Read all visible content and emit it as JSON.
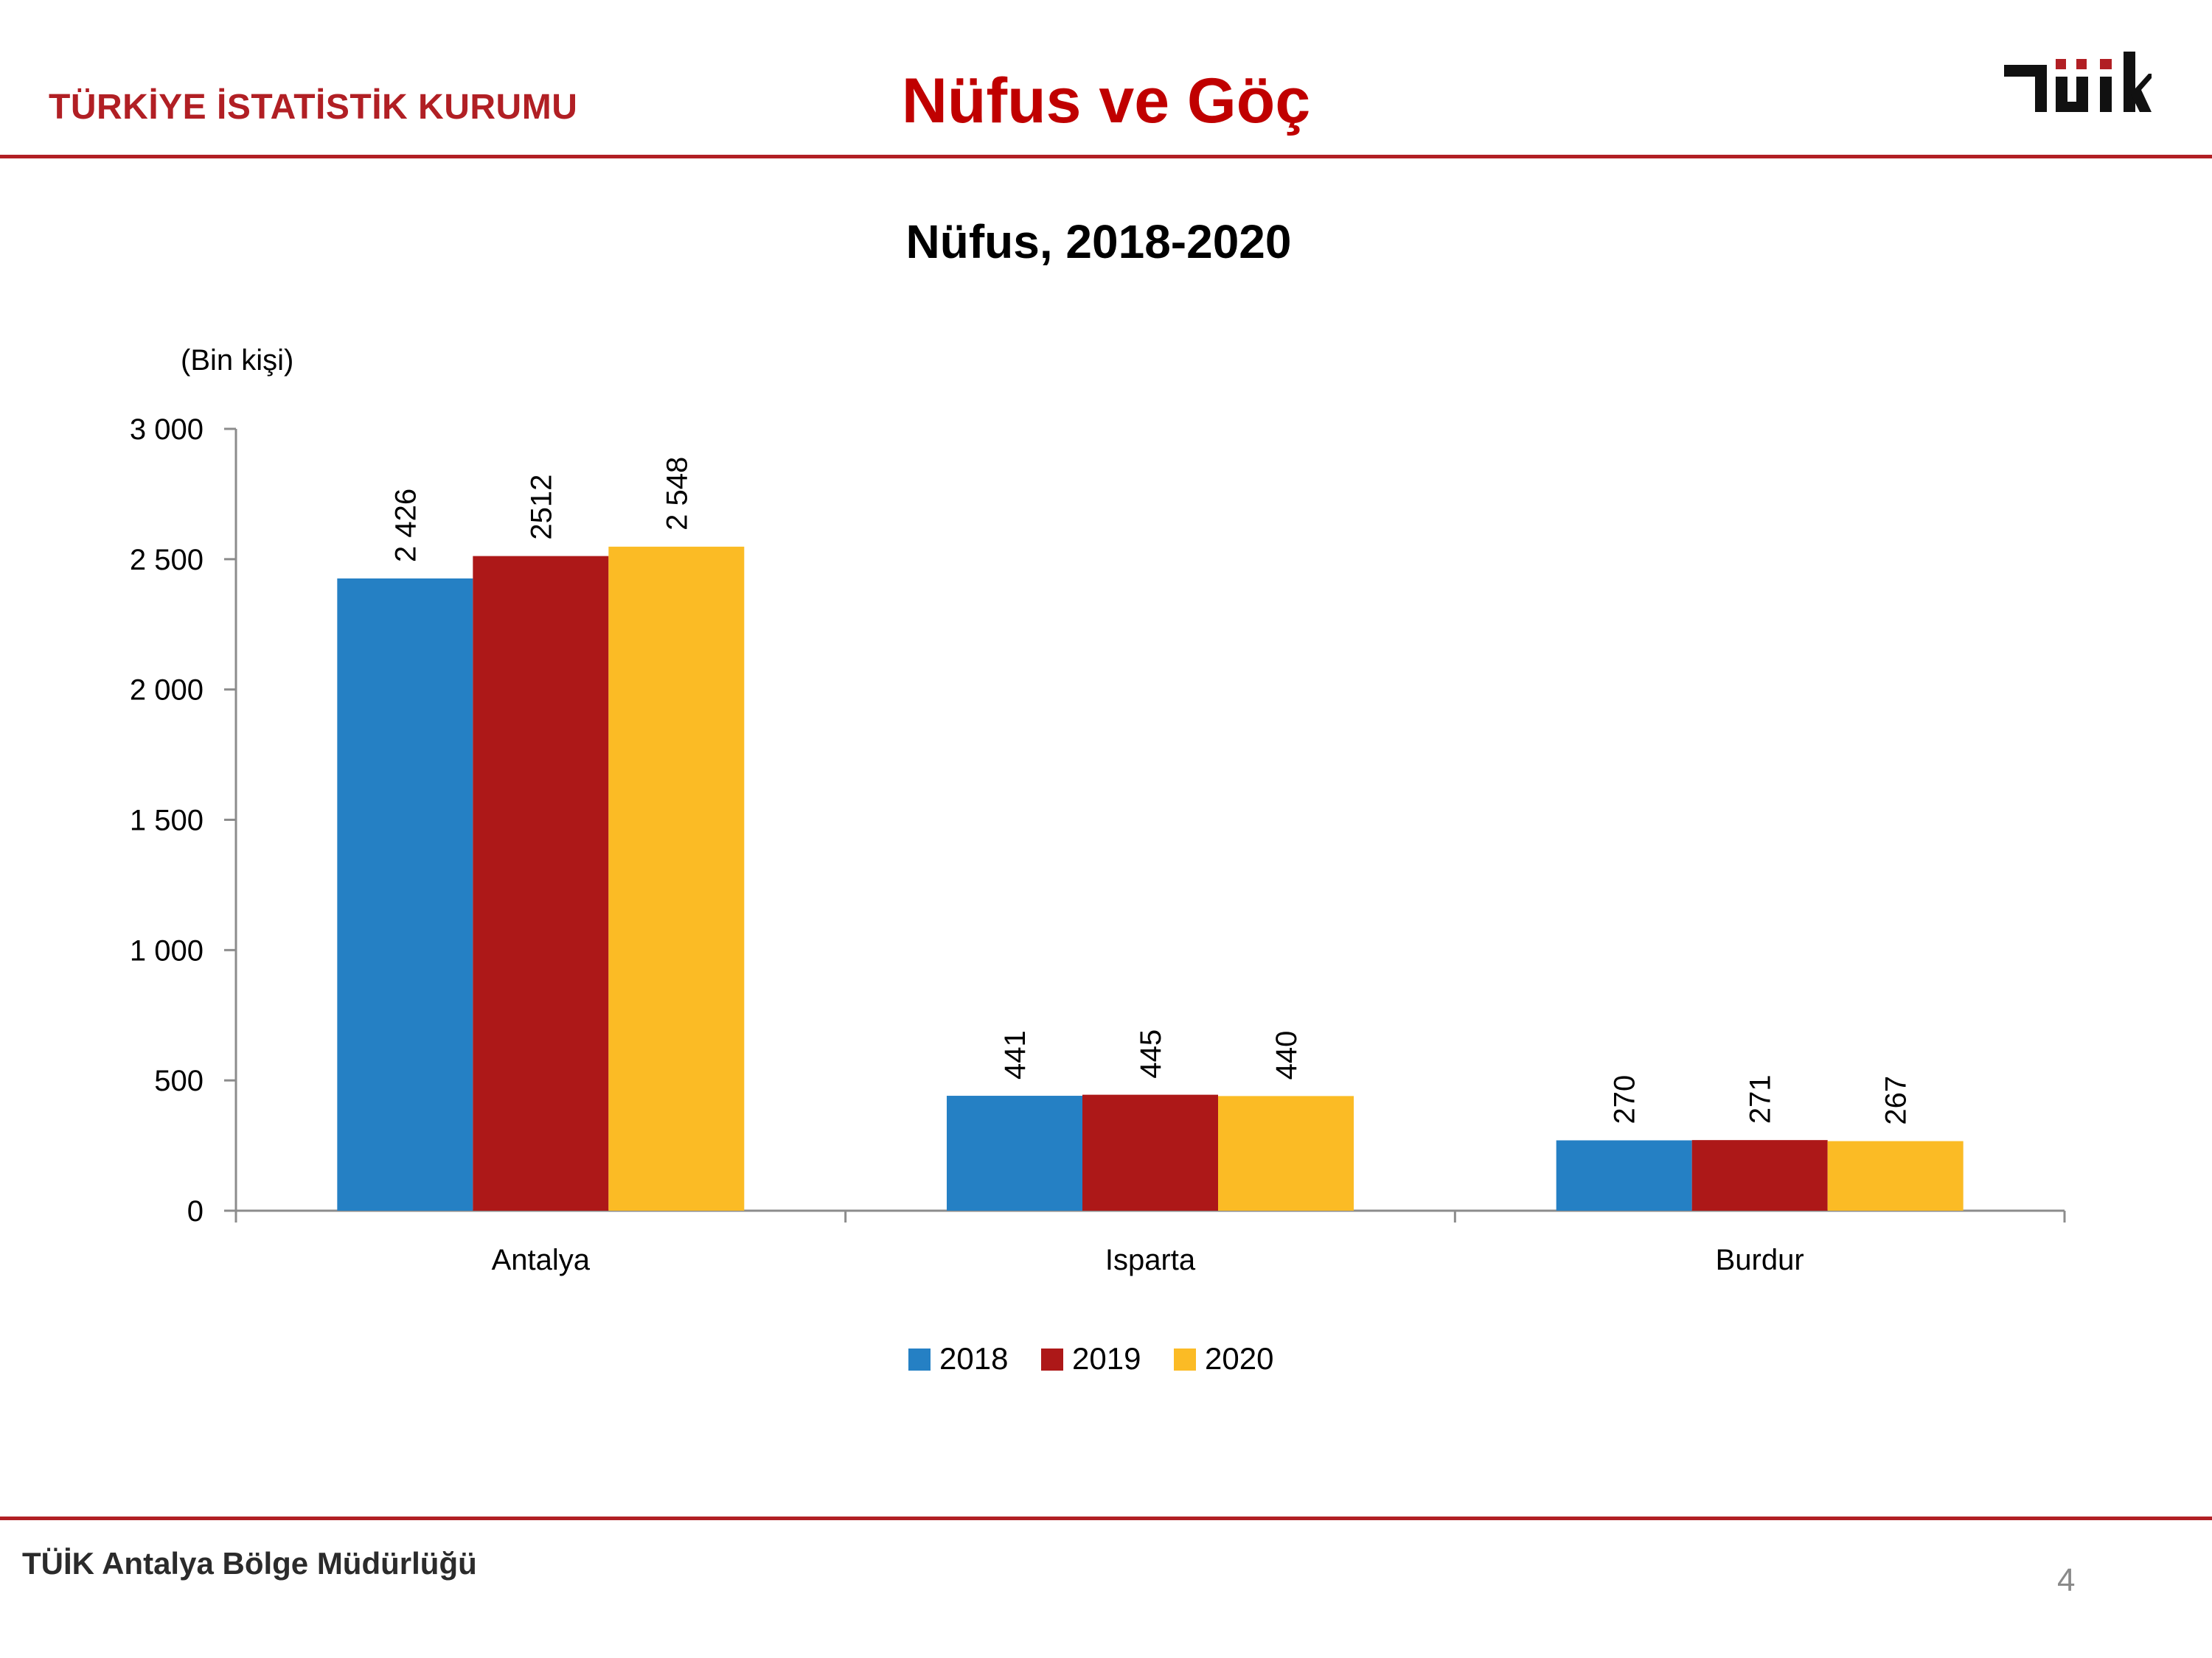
{
  "header": {
    "org_name": "TÜRKİYE İSTATİSTİK KURUMU",
    "slide_title": "Nüfus ve Göç",
    "logo_text": "TÜİK"
  },
  "footer": {
    "office": "TÜİK Antalya Bölge Müdürlüğü",
    "page_number": "4"
  },
  "colors": {
    "accent": "#b11f24",
    "title": "#c00000"
  },
  "chart_data": {
    "type": "bar",
    "title": "Nüfus, 2018-2020",
    "unit_label": "(Bin kişi)",
    "categories": [
      "Antalya",
      "Isparta",
      "Burdur"
    ],
    "series": [
      {
        "name": "2018",
        "color": "#2580c4",
        "values": [
          2426,
          441,
          270
        ],
        "labels": [
          "2 426",
          "441",
          "270"
        ]
      },
      {
        "name": "2019",
        "color": "#ad1818",
        "values": [
          2512,
          445,
          271
        ],
        "labels": [
          "2512",
          "445",
          "271"
        ]
      },
      {
        "name": "2020",
        "color": "#fbbb25",
        "values": [
          2548,
          440,
          267
        ],
        "labels": [
          "2 548",
          "440",
          "267"
        ]
      }
    ],
    "yticks": [
      0,
      500,
      1000,
      1500,
      2000,
      2500,
      3000
    ],
    "ytick_labels": [
      "0",
      "500",
      "1 000",
      "1 500",
      "2 000",
      "2 500",
      "3 000"
    ],
    "ylim": [
      0,
      3000
    ],
    "grid": false,
    "legend": "bottom-center",
    "data_label_orientation": "vertical"
  }
}
